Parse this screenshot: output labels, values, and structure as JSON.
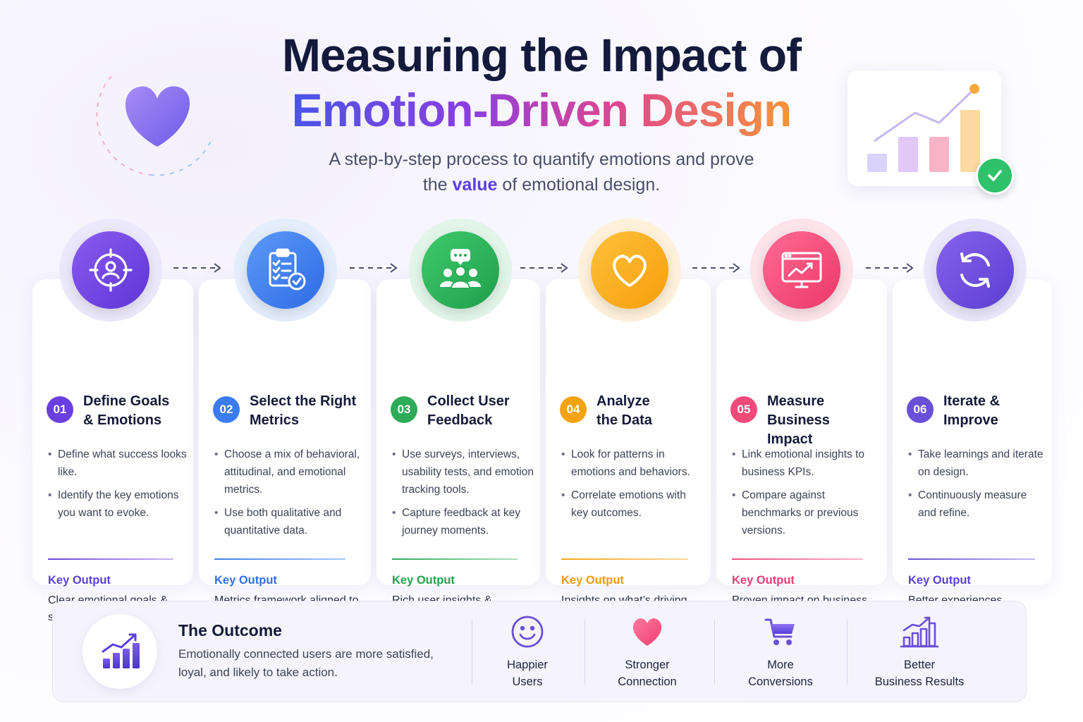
{
  "header": {
    "title_line1": "Measuring the Impact of",
    "title_line2": "Emotion-Driven Design",
    "subtitle_line1": "A step-by-step process to quantify emotions and prove",
    "subtitle_pre": "the",
    "subtitle_highlight": "value",
    "subtitle_post": "of emotional design."
  },
  "steps": [
    {
      "number": "01",
      "title_line1": "Define Goals",
      "title_line2": "& Emotions",
      "icon": "target-user-icon",
      "color": "#6a3fe0",
      "bullets": [
        "Define what success looks like.",
        "Identify the key emotions you want to evoke."
      ],
      "key_output_label": "Key Output",
      "key_output": "Clear emotional goals & success metrics"
    },
    {
      "number": "02",
      "title_line1": "Select the Right",
      "title_line2": "Metrics",
      "icon": "clipboard-check-icon",
      "color": "#3b7cf0",
      "bullets": [
        "Choose a mix of behavioral, attitudinal, and emotional metrics.",
        "Use both qualitative and quantitative data."
      ],
      "key_output_label": "Key Output",
      "key_output": "Metrics framework aligned to goals"
    },
    {
      "number": "03",
      "title_line1": "Collect User",
      "title_line2": "Feedback",
      "icon": "group-chat-icon",
      "color": "#2dab57",
      "bullets": [
        "Use surveys, interviews, usability tests, and emotion tracking tools.",
        "Capture feedback at key journey moments."
      ],
      "key_output_label": "Key Output",
      "key_output": "Rich user insights & emotional data"
    },
    {
      "number": "04",
      "title_line1": "Analyze",
      "title_line2": "the Data",
      "icon": "heart-icon",
      "color": "#f5a312",
      "bullets": [
        "Look for patterns in emotions and behaviors.",
        "Correlate emotions with key outcomes."
      ],
      "key_output_label": "Key Output",
      "key_output": "Insights on what’s driving impact"
    },
    {
      "number": "05",
      "title_line1": "Measure Business",
      "title_line2": "Impact",
      "icon": "monitor-chart-icon",
      "color": "#f04a7a",
      "bullets": [
        "Link emotional insights to business KPIs.",
        "Compare against benchmarks or previous versions."
      ],
      "key_output_label": "Key Output",
      "key_output": "Proven impact on business outcomes"
    },
    {
      "number": "06",
      "title_line1": "Iterate &",
      "title_line2": "Improve",
      "icon": "refresh-icon",
      "color": "#6a4fd8",
      "bullets": [
        "Take learnings and iterate on design.",
        "Continuously measure and refine."
      ],
      "key_output_label": "Key Output",
      "key_output": "Better experiences, stronger results"
    }
  ],
  "outcome": {
    "title": "The Outcome",
    "text": "Emotionally connected users are more satisfied, loyal, and likely to take action.",
    "benefits": [
      {
        "icon": "smile-icon",
        "line1": "Happier",
        "line2": "Users"
      },
      {
        "icon": "heart-icon",
        "line1": "Stronger",
        "line2": "Connection"
      },
      {
        "icon": "cart-icon",
        "line1": "More",
        "line2": "Conversions"
      },
      {
        "icon": "bar-chart-icon",
        "line1": "Better",
        "line2": "Business Results"
      }
    ]
  }
}
